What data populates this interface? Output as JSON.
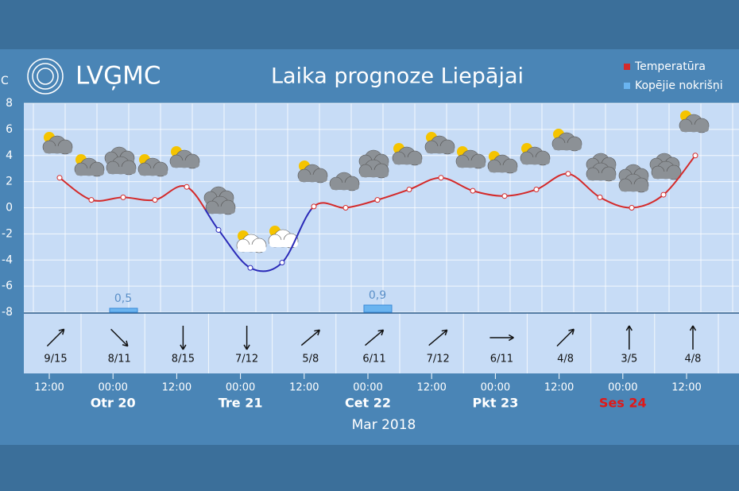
{
  "header": {
    "logo": "LVĢMC",
    "title": "Laika prognoze Liepājai"
  },
  "chart_data": {
    "type": "line",
    "y_unit": "°C",
    "ylim": [
      -8,
      8
    ],
    "yticks": [
      8,
      6,
      4,
      2,
      0,
      -2,
      -4,
      -6,
      -8
    ],
    "grid": true,
    "legend": "top-right",
    "categories": [
      null,
      null,
      null,
      null,
      null,
      null,
      null,
      null,
      null,
      null,
      null,
      null,
      null,
      null,
      null,
      null,
      null,
      null,
      null,
      null,
      null
    ],
    "series": [
      {
        "name": "Temperatūra",
        "color": "#d42a2a",
        "below_zero_color": "#2a2ab8",
        "values": [
          2.3,
          0.6,
          0.8,
          0.6,
          1.6,
          -1.7,
          -4.6,
          -4.2,
          0.1,
          0.0,
          0.6,
          1.4,
          2.3,
          1.3,
          0.9,
          1.4,
          2.6,
          0.8,
          0.0,
          1.0,
          4.0
        ]
      },
      {
        "name": "Kopējie nokrišņi",
        "type": "bar",
        "color": "#6ab4f0",
        "values": [
          null,
          null,
          0.5,
          null,
          null,
          null,
          null,
          null,
          null,
          null,
          0.9,
          null,
          null,
          null,
          null,
          null,
          null,
          null,
          null,
          null,
          null
        ],
        "value_labels": [
          null,
          null,
          "0,5",
          null,
          null,
          null,
          null,
          null,
          null,
          null,
          "0,9",
          null,
          null,
          null,
          null,
          null,
          null,
          null,
          null,
          null,
          null
        ]
      }
    ],
    "time_labels": [
      "12:00",
      "00:00",
      "12:00",
      "00:00",
      "12:00",
      "00:00",
      "12:00",
      "00:00",
      "12:00",
      "00:00",
      "12:00"
    ],
    "day_labels": [
      "Otr 20",
      "Tre 21",
      "Cet 22",
      "Pkt 23",
      "Ses 24"
    ],
    "day_colors": [
      "#ffffff",
      "#ffffff",
      "#ffffff",
      "#ffffff",
      "#e01818"
    ],
    "month_label": "Mar 2018",
    "wind": [
      "9/15",
      "8/11",
      "8/15",
      "7/12",
      "5/8",
      "6/11",
      "7/12",
      "6/11",
      "4/8",
      "3/5",
      "4/8"
    ]
  }
}
